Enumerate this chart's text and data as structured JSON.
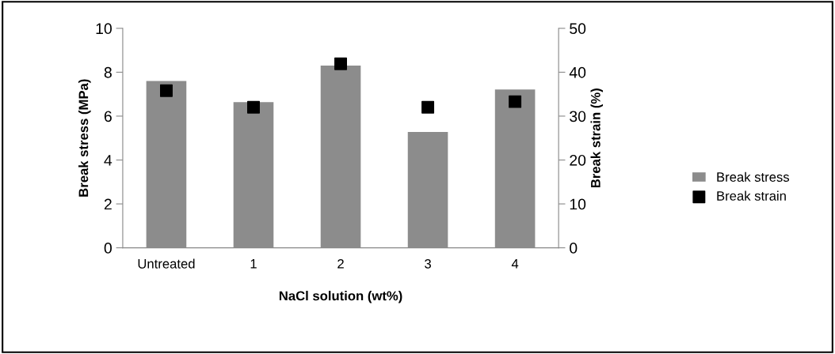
{
  "chart_data": {
    "type": "bar",
    "xlabel": "NaCl solution (wt%)",
    "ylabel": "Break stress (MPa)",
    "y2label": "Break strain (%)",
    "categories": [
      "Untreated",
      "1",
      "2",
      "3",
      "4"
    ],
    "series": [
      {
        "name": "Break stress",
        "color": "#8c8c8c",
        "values": [
          7.6,
          6.64,
          8.3,
          5.28,
          7.21
        ]
      },
      {
        "name": "Break strain",
        "type": "scatter",
        "axis": "y2",
        "color": "#000000",
        "values": [
          35.8,
          32.0,
          41.9,
          32.0,
          33.3
        ]
      }
    ],
    "ylim": [
      0,
      10
    ],
    "yticks": [
      0,
      2,
      4,
      6,
      8,
      10
    ],
    "y2lim": [
      0,
      50
    ],
    "y2ticks": [
      0,
      10,
      20,
      30,
      40,
      50
    ],
    "grid": false,
    "legend": "right",
    "marker": "square"
  }
}
